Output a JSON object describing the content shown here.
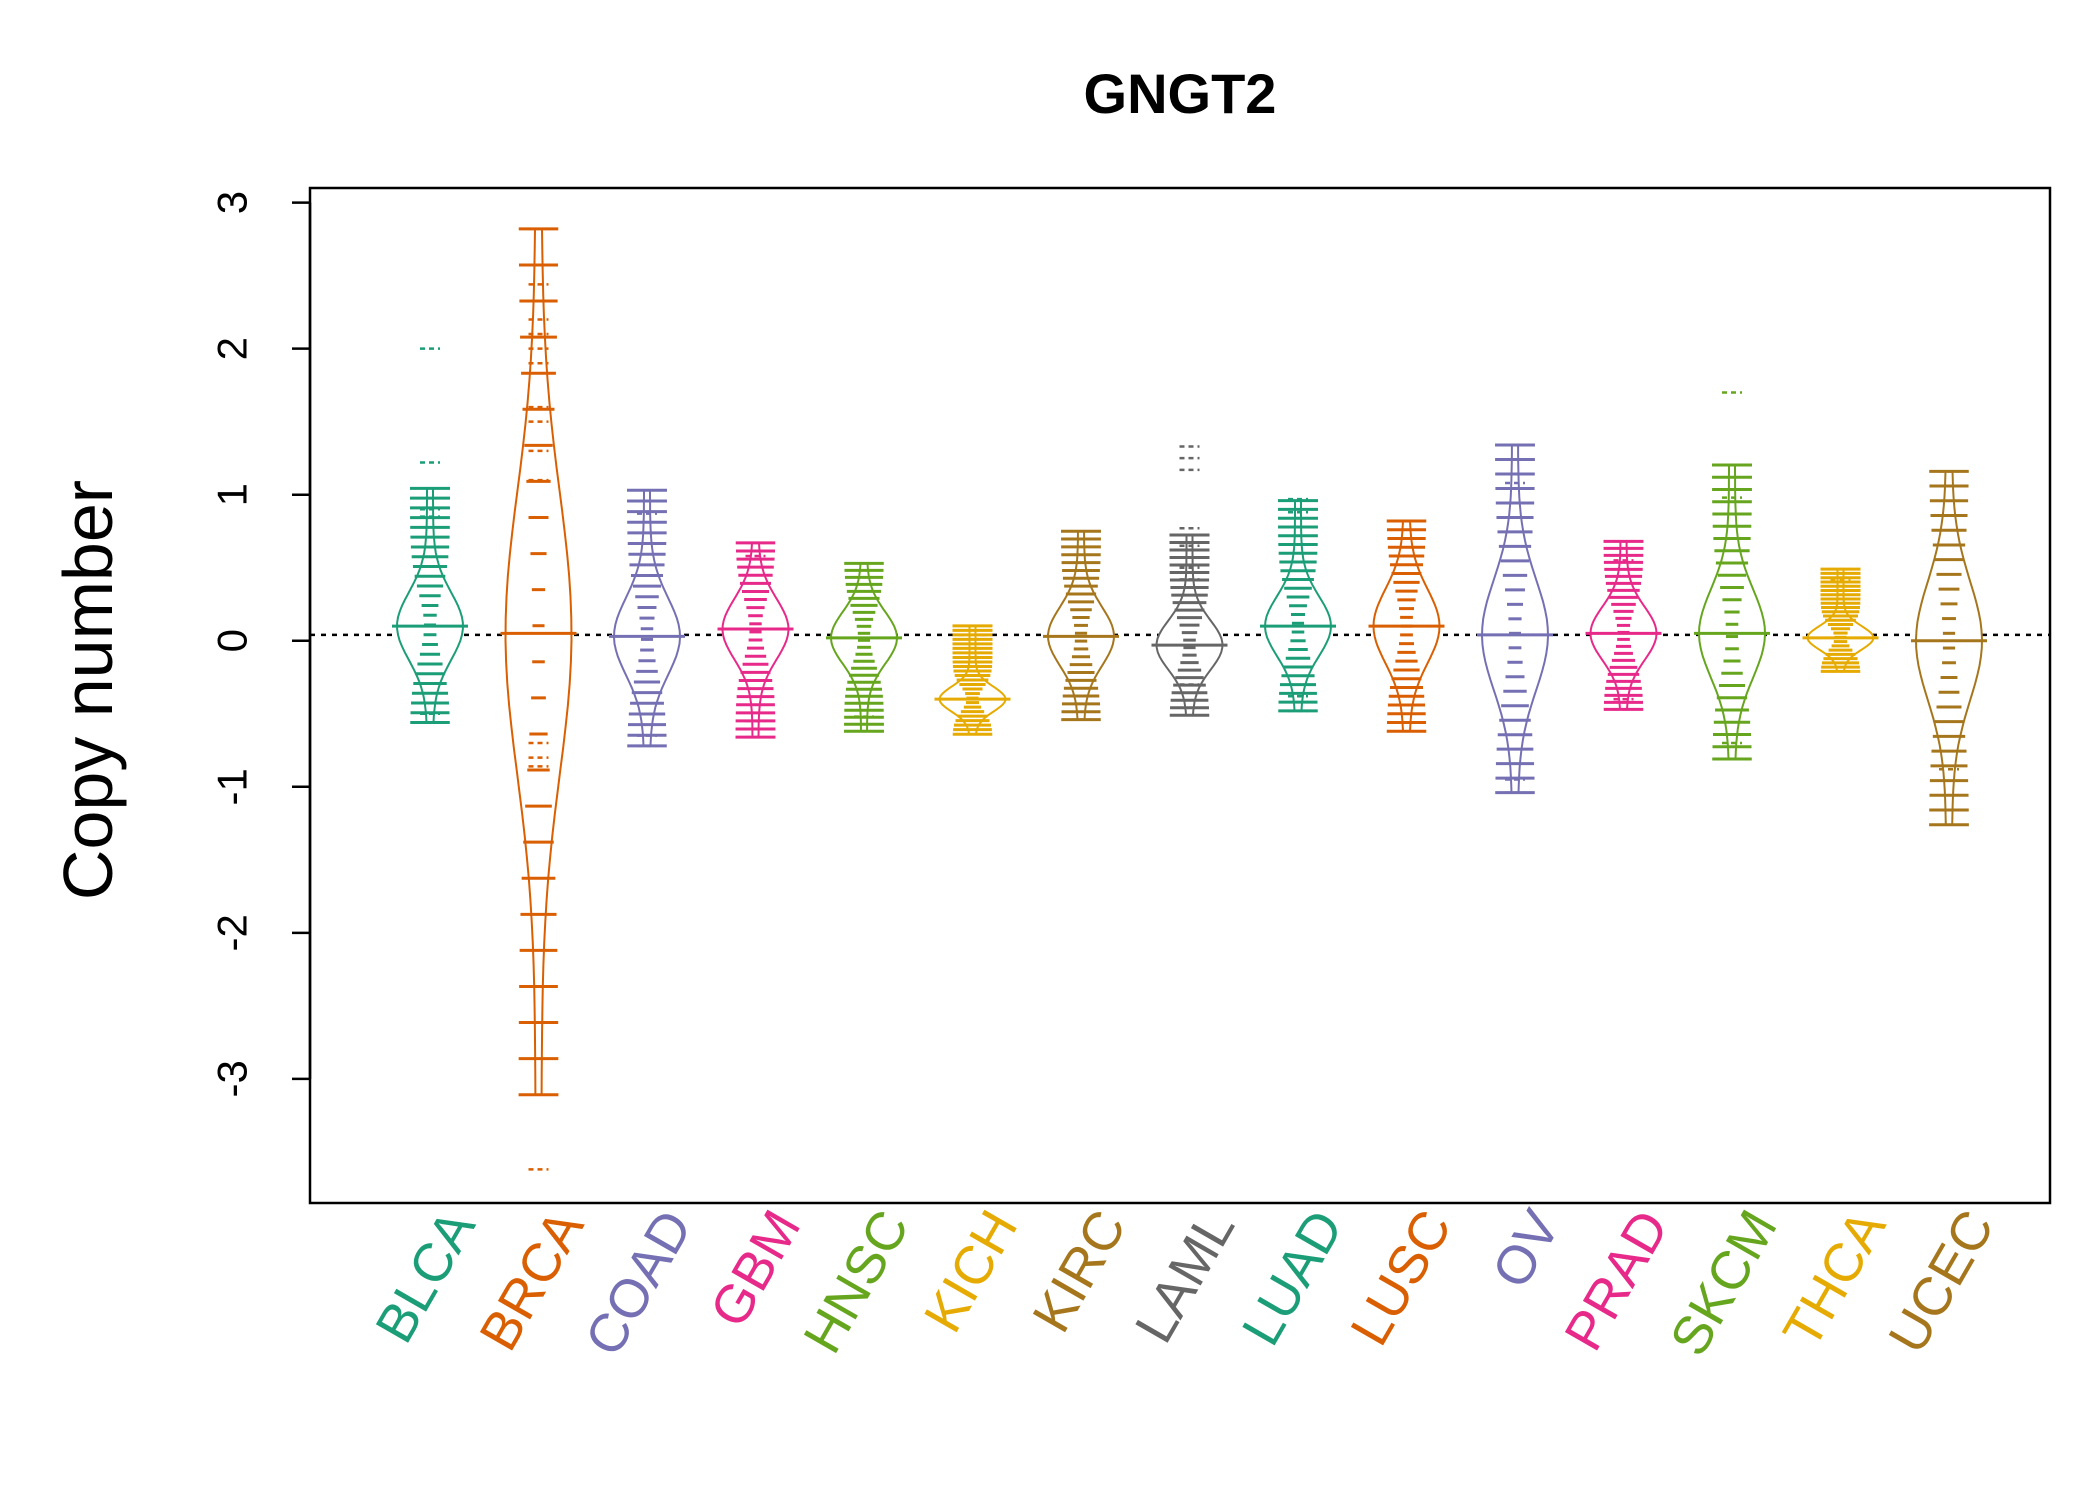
{
  "chart_data": {
    "type": "beanplot",
    "title": "GNGT2",
    "xlabel": "",
    "ylabel": "Copy number",
    "ylim": [
      -3.85,
      3.1
    ],
    "yticks": [
      -3,
      -2,
      -1,
      0,
      1,
      2,
      3
    ],
    "reference_line": 0.04,
    "grid": false,
    "categories": [
      "BLCA",
      "BRCA",
      "COAD",
      "GBM",
      "HNSC",
      "KICH",
      "KIRC",
      "LAML",
      "LUAD",
      "LUSC",
      "OV",
      "PRAD",
      "SKCM",
      "THCA",
      "UCEC"
    ],
    "colors": [
      "#1b9e77",
      "#d95f02",
      "#7570b3",
      "#e7298a",
      "#66a61e",
      "#e6ab02",
      "#a6761d",
      "#666666",
      "#1b9e77",
      "#d95f02",
      "#7570b3",
      "#e7298a",
      "#66a61e",
      "#e6ab02",
      "#a6761d"
    ],
    "series": [
      {
        "name": "BLCA",
        "min": -0.56,
        "max": 2.0,
        "median": 0.1,
        "outliers": [
          2.0,
          1.22,
          0.9,
          0.85,
          -0.5,
          -0.56
        ]
      },
      {
        "name": "BRCA",
        "min": -3.62,
        "max": 2.82,
        "median": 0.05,
        "outliers": [
          2.82,
          2.44,
          2.2,
          2.1,
          2.0,
          1.9,
          1.6,
          1.5,
          1.3,
          1.1,
          -0.7,
          -0.8,
          -0.86,
          -3.62
        ]
      },
      {
        "name": "COAD",
        "min": -0.72,
        "max": 1.03,
        "median": 0.03,
        "outliers": [
          1.03,
          0.87,
          -0.65,
          -0.72
        ]
      },
      {
        "name": "GBM",
        "min": -0.66,
        "max": 0.67,
        "median": 0.08,
        "outliers": [
          0.67,
          0.58,
          -0.55,
          -0.66
        ]
      },
      {
        "name": "HNSC",
        "min": -0.62,
        "max": 0.53,
        "median": 0.02,
        "outliers": [
          -0.52,
          -0.62
        ]
      },
      {
        "name": "KICH",
        "min": -0.64,
        "max": 0.13,
        "median": -0.4,
        "outliers": [
          -0.64
        ]
      },
      {
        "name": "KIRC",
        "min": -0.54,
        "max": 0.75,
        "median": 0.03,
        "outliers": [
          0.75,
          -0.54
        ]
      },
      {
        "name": "LAML",
        "min": -0.51,
        "max": 1.33,
        "median": -0.03,
        "outliers": [
          1.33,
          1.25,
          1.17,
          0.77,
          0.65,
          0.5,
          0.42,
          -0.3,
          -0.51
        ]
      },
      {
        "name": "LUAD",
        "min": -0.48,
        "max": 0.97,
        "median": 0.1,
        "outliers": [
          0.97,
          0.88,
          0.78,
          -0.38,
          -0.48
        ]
      },
      {
        "name": "LUSC",
        "min": -0.62,
        "max": 0.82,
        "median": 0.1,
        "outliers": [
          0.82,
          -0.62
        ]
      },
      {
        "name": "OV",
        "min": -1.04,
        "max": 1.34,
        "median": 0.04,
        "outliers": [
          1.34,
          1.08,
          -0.95,
          -1.04
        ]
      },
      {
        "name": "PRAD",
        "min": -0.47,
        "max": 0.68,
        "median": 0.05,
        "outliers": [
          0.68,
          0.55,
          -0.4,
          -0.47
        ]
      },
      {
        "name": "SKCM",
        "min": -0.81,
        "max": 1.7,
        "median": 0.05,
        "outliers": [
          1.7,
          0.98,
          -0.7,
          -0.81
        ]
      },
      {
        "name": "THCA",
        "min": -0.21,
        "max": 0.49,
        "median": 0.02,
        "outliers": [
          0.49,
          0.42,
          -0.21
        ]
      },
      {
        "name": "UCEC",
        "min": -1.26,
        "max": 1.16,
        "median": 0.0,
        "outliers": [
          1.16,
          -0.88,
          -1.26
        ]
      }
    ]
  }
}
